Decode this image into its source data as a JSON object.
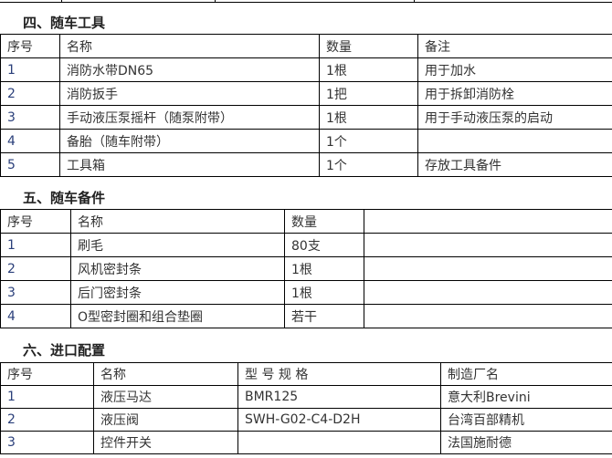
{
  "sections": [
    {
      "title": "四、随车工具",
      "headers": [
        "序号",
        "名称",
        "数量",
        "备注"
      ],
      "rows": [
        [
          "1",
          "消防水带DN65",
          "1根",
          "用于加水"
        ],
        [
          "2",
          "消防扳手",
          "1把",
          "用于拆卸消防栓"
        ],
        [
          "3",
          "手动液压泵摇杆（随泵附带）",
          "1根",
          "用于手动液压泵的启动"
        ],
        [
          "4",
          "备胎（随车附带）",
          "1个",
          ""
        ],
        [
          "5",
          "工具箱",
          "1个",
          "存放工具备件"
        ]
      ]
    },
    {
      "title": "五、随车备件",
      "headers": [
        "序号",
        "名称",
        "数量",
        ""
      ],
      "rows": [
        [
          "1",
          "刷毛",
          "80支",
          ""
        ],
        [
          "2",
          "风机密封条",
          "1根",
          ""
        ],
        [
          "3",
          "后门密封条",
          "1根",
          ""
        ],
        [
          "4",
          "O型密封圈和组合垫圈",
          "若干",
          ""
        ]
      ]
    },
    {
      "title": "六、进口配置",
      "headers": [
        "序号",
        "名称",
        "型 号 规 格",
        "制造厂名"
      ],
      "rows": [
        [
          "1",
          "液压马达",
          "BMR125",
          "意大利Brevini"
        ],
        [
          "2",
          "液压阀",
          "SWH-G02-C4-D2H",
          "台湾百部精机"
        ],
        [
          "3",
          "控件开关",
          "",
          "法国施耐德"
        ]
      ]
    }
  ]
}
